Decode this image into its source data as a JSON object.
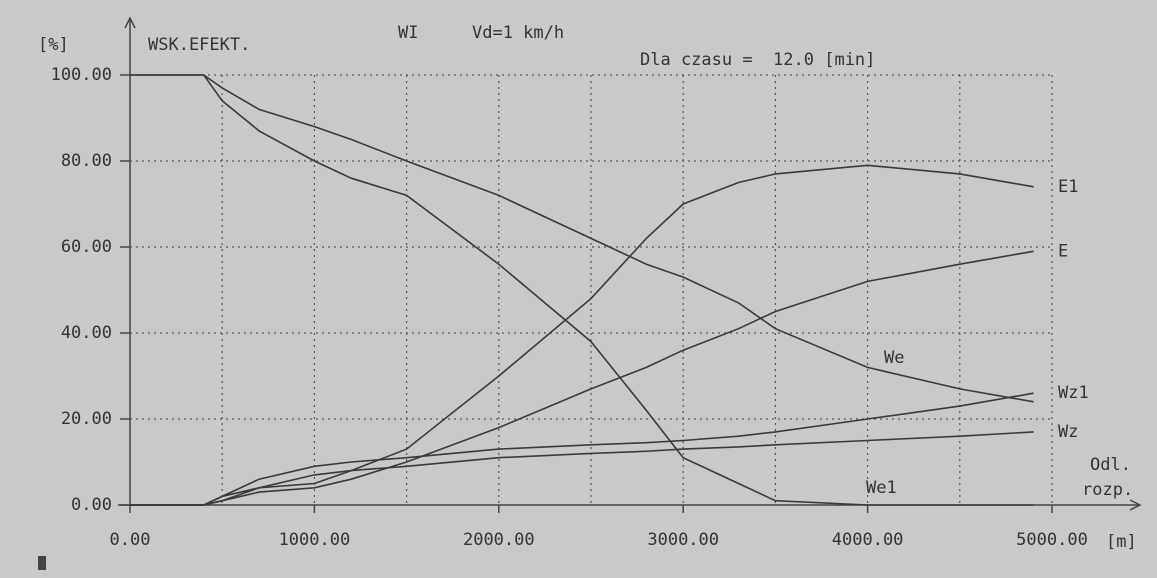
{
  "chart_data": {
    "type": "line",
    "title": "WSK.EFEKT.",
    "y_unit": "[%]",
    "subtitle_left": "WI",
    "subtitle_mid": "Vd=1 km/h",
    "subtitle_right": "Dla czasu =  12.0 [min]",
    "xlabel_line1": "Odl.",
    "xlabel_line2": "rozp.",
    "x_unit": "[m]",
    "x": [
      0,
      400,
      500,
      700,
      1000,
      1200,
      1500,
      2000,
      2500,
      2800,
      3000,
      3300,
      3500,
      4000,
      4500,
      4900
    ],
    "series": [
      {
        "name": "E1",
        "color": "#3a3a3a",
        "values": [
          0,
          0,
          2,
          4,
          5,
          8,
          13,
          30,
          48,
          62,
          70,
          75,
          77,
          79,
          77,
          74
        ]
      },
      {
        "name": "E",
        "color": "#3a3a3a",
        "values": [
          0,
          0,
          1,
          3,
          4,
          6,
          10,
          18,
          27,
          32,
          36,
          41,
          45,
          52,
          56,
          59
        ]
      },
      {
        "name": "We",
        "color": "#3a3a3a",
        "values": [
          100,
          100,
          97,
          92,
          88,
          85,
          80,
          72,
          62,
          56,
          53,
          47,
          41,
          32,
          27,
          24
        ]
      },
      {
        "name": "Wz1",
        "color": "#3a3a3a",
        "values": [
          0,
          0,
          2,
          6,
          9,
          10,
          11,
          13,
          14,
          14.5,
          15,
          16,
          17,
          20,
          23,
          26
        ]
      },
      {
        "name": "Wz",
        "color": "#3a3a3a",
        "values": [
          0,
          0,
          1,
          4,
          7,
          8,
          9,
          11,
          12,
          12.5,
          13,
          13.5,
          14,
          15,
          16,
          17
        ]
      },
      {
        "name": "We1",
        "color": "#3a3a3a",
        "values": [
          100,
          100,
          94,
          87,
          80,
          76,
          72,
          56,
          38,
          22,
          11,
          5,
          1,
          0,
          0,
          0
        ]
      }
    ],
    "xlim": [
      0,
      5000
    ],
    "ylim": [
      0,
      100
    ],
    "xticks": [
      {
        "value": 0,
        "label": "0.00"
      },
      {
        "value": 1000,
        "label": "1000.00"
      },
      {
        "value": 2000,
        "label": "2000.00"
      },
      {
        "value": 3000,
        "label": "3000.00"
      },
      {
        "value": 4000,
        "label": "4000.00"
      },
      {
        "value": 5000,
        "label": "5000.00"
      }
    ],
    "xgrid": [
      500,
      1500,
      2500,
      3500,
      4500
    ],
    "yticks": [
      {
        "value": 0,
        "label": "0.00"
      },
      {
        "value": 20,
        "label": "20.00"
      },
      {
        "value": 40,
        "label": "40.00"
      },
      {
        "value": 60,
        "label": "60.00"
      },
      {
        "value": 80,
        "label": "80.00"
      },
      {
        "value": 100,
        "label": "100.00"
      }
    ],
    "grid": true
  }
}
